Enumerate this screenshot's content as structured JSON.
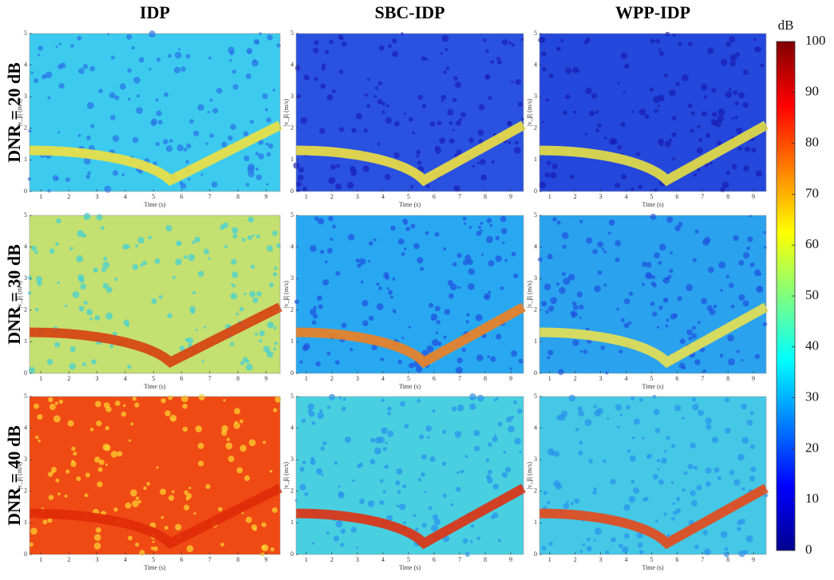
{
  "columns": [
    "IDP",
    "SBC-IDP",
    "WPP-IDP"
  ],
  "rows": [
    "DNR = 20 dB",
    "DNR = 30 dB",
    "DNR = 40 dB"
  ],
  "panel": {
    "xlabel": "Time (s)",
    "ylabel": "|v_β| (m/s)",
    "xlim": [
      0.6,
      9.5
    ],
    "xticks": [
      1,
      2,
      3,
      4,
      5,
      6,
      7,
      8,
      9
    ],
    "ylim": [
      0,
      5
    ],
    "yticks": [
      0,
      1,
      2,
      3,
      4,
      5
    ]
  },
  "colorbar": {
    "label": "dB",
    "lim": [
      0,
      100
    ],
    "ticks": [
      0,
      10,
      20,
      30,
      40,
      50,
      60,
      70,
      80,
      90,
      100
    ]
  }
}
